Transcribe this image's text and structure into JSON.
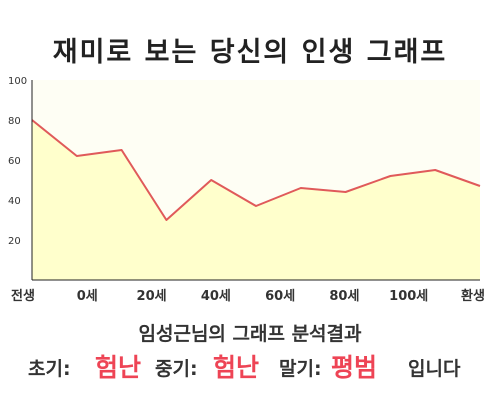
{
  "title": "재미로 보는 당신의 인생 그래프",
  "chart_data": {
    "type": "area",
    "x_ticks": [
      "전생",
      "0세",
      "20세",
      "40세",
      "60세",
      "80세",
      "100세",
      "환생"
    ],
    "y_ticks": [
      "100",
      "80",
      "60",
      "40",
      "20"
    ],
    "ylim": [
      0,
      100
    ],
    "grid": false,
    "series": [
      {
        "values": [
          80,
          62,
          65,
          30,
          50,
          37,
          46,
          44,
          52,
          55,
          47
        ]
      }
    ],
    "colors": {
      "line": "#e05a5a",
      "fill": "#ffffcc",
      "plot_bg": "#fefef4"
    }
  },
  "summary": {
    "title": "임성근님의 그래프 분석결과",
    "early_label": "초기:",
    "early_value": "험난",
    "middle_label": "중기:",
    "middle_value": "험난",
    "late_label": "말기:",
    "late_value": "평범",
    "ending": "입니다"
  }
}
